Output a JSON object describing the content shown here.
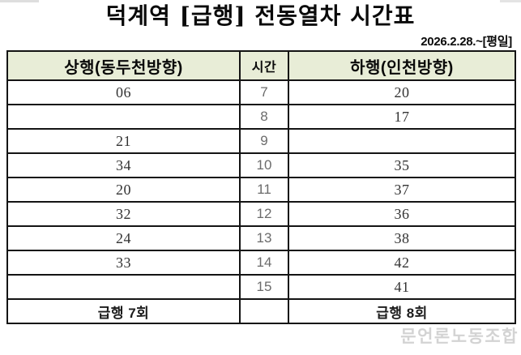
{
  "title": "덕계역 [급행] 전동열차 시간표",
  "effective_date": "2026.2.28.~[평일]",
  "table": {
    "headers": {
      "up": "상행(동두천방향)",
      "hour": "시간",
      "down": "하행(인천방향)"
    },
    "rows": [
      {
        "up": "06",
        "hour": "7",
        "down": "20"
      },
      {
        "up": "",
        "hour": "8",
        "down": "17"
      },
      {
        "up": "21",
        "hour": "9",
        "down": ""
      },
      {
        "up": "34",
        "hour": "10",
        "down": "35"
      },
      {
        "up": "20",
        "hour": "11",
        "down": "37"
      },
      {
        "up": "32",
        "hour": "12",
        "down": "36"
      },
      {
        "up": "24",
        "hour": "13",
        "down": "38"
      },
      {
        "up": "33",
        "hour": "14",
        "down": "42"
      },
      {
        "up": "",
        "hour": "15",
        "down": "41"
      }
    ],
    "footer": {
      "up_total": "급행 7회",
      "hour": "",
      "down_total": "급행 8회"
    }
  },
  "watermark": "문언론노동조합",
  "colors": {
    "header_bg": "#e8edd7",
    "border": "#141414",
    "hour_text": "#6b6b6b",
    "minute_text": "#333333"
  }
}
